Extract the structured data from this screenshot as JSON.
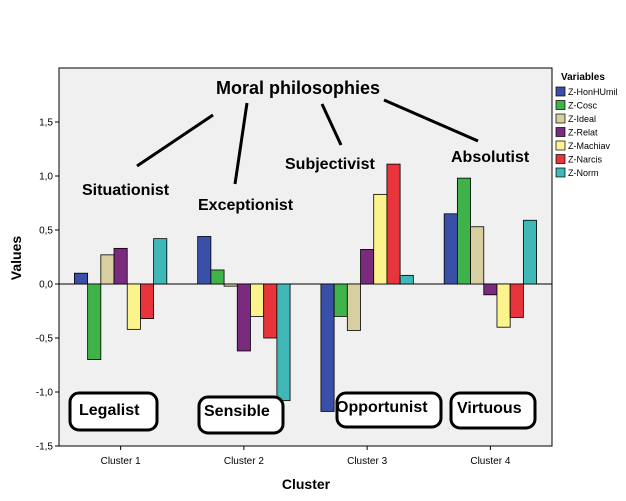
{
  "chart_data": {
    "type": "bar",
    "xlabel": "Cluster",
    "ylabel": "Values",
    "ylim": [
      -1.5,
      2.0
    ],
    "yticks": [
      "-1,5",
      "-1,0",
      "-0,5",
      "0,0",
      "0,5",
      "1,0",
      "1,5"
    ],
    "yticks_values": [
      -1.5,
      -1.0,
      -0.5,
      0.0,
      0.5,
      1.0,
      1.5
    ],
    "categories": [
      "Cluster 1",
      "Cluster 2",
      "Cluster 3",
      "Cluster 4"
    ],
    "legend_title": "Variables",
    "legend_position": "right",
    "series": [
      {
        "name": "Z-HonHUmil",
        "color": "#3a4fa8",
        "values": [
          0.1,
          0.44,
          -1.18,
          0.65
        ]
      },
      {
        "name": "Z-Cosc",
        "color": "#3fb349",
        "values": [
          -0.7,
          0.13,
          -0.3,
          0.98
        ]
      },
      {
        "name": "Z-Ideal",
        "color": "#d7cfa0",
        "values": [
          0.27,
          -0.02,
          -0.43,
          0.53
        ]
      },
      {
        "name": "Z-Relat",
        "color": "#7a2b7e",
        "values": [
          0.33,
          -0.62,
          0.32,
          -0.1
        ]
      },
      {
        "name": "Z-Machiav",
        "color": "#fbf48d",
        "values": [
          -0.42,
          -0.3,
          0.83,
          -0.4
        ]
      },
      {
        "name": "Z-Narcis",
        "color": "#e8353b",
        "values": [
          -0.32,
          -0.5,
          1.11,
          -0.31
        ]
      },
      {
        "name": "Z-Norm",
        "color": "#3fb8b7",
        "values": [
          0.42,
          -1.08,
          0.08,
          0.59
        ]
      }
    ],
    "annotations": {
      "main": "Moral philosophies",
      "types": [
        "Situationist",
        "Exceptionist",
        "Subjectivist",
        "Absolutist"
      ],
      "clusters": [
        "Legalist",
        "Sensible",
        "Opportunist",
        "Virtuous"
      ]
    }
  }
}
